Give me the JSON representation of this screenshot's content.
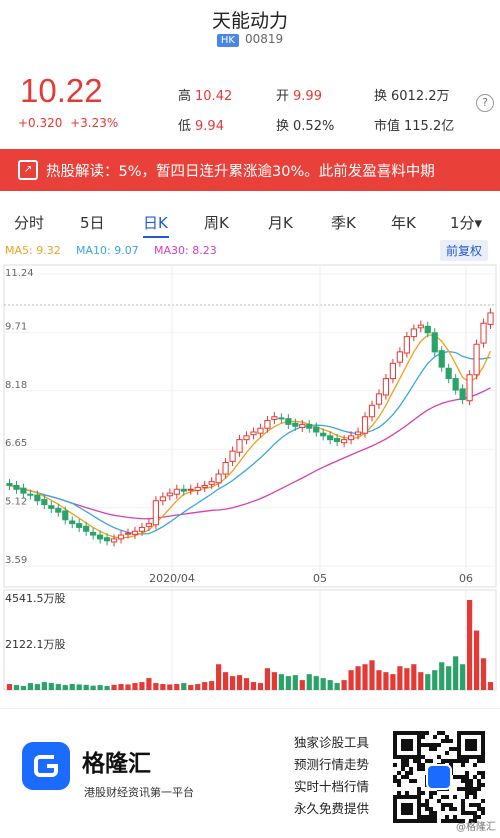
{
  "header": {
    "title": "天能动力",
    "market": "HK",
    "code": "00819"
  },
  "quote": {
    "price": "10.22",
    "change": "+0.320",
    "change_pct": "+3.23%",
    "stats": {
      "high_label": "高",
      "high": "10.42",
      "open_label": "开",
      "open": "9.99",
      "amount_label": "换",
      "amount": "6012.2万",
      "low_label": "低",
      "low": "9.94",
      "turnover_label": "换",
      "turnover": "0.52%",
      "mktcap_label": "市值",
      "mktcap": "115.2亿"
    },
    "help_icon": "?"
  },
  "banner": {
    "icon": "trend-icon",
    "text": "热股解读：5%，暂四日连升累涨逾30%。此前发盈喜料中期"
  },
  "tabs": [
    {
      "label": "分时"
    },
    {
      "label": "5日"
    },
    {
      "label": "日K",
      "active": true
    },
    {
      "label": "周K"
    },
    {
      "label": "月K"
    },
    {
      "label": "季K"
    },
    {
      "label": "年K"
    },
    {
      "label": "1分▾"
    }
  ],
  "ma": {
    "ma5": "MA5: 9.32",
    "ma10": "MA10: 9.07",
    "ma30": "MA30: 8.23",
    "colors": {
      "ma5": "#f0a020",
      "ma10": "#3aa6dd",
      "ma30": "#d640b0"
    },
    "adjust_button": "前复权"
  },
  "chart_data": {
    "type": "candlestick",
    "y_ticks": [
      "11.24",
      "9.71",
      "8.18",
      "6.65",
      "5.12",
      "3.59"
    ],
    "ylim": [
      3.59,
      11.24
    ],
    "x_ticks": [
      "2020/04",
      "05",
      "06"
    ],
    "volume_labels": [
      "4541.5万股",
      "2122.1万股"
    ],
    "volume_max": 4541.5,
    "close_series": [
      5.7,
      5.6,
      5.5,
      5.45,
      5.3,
      5.2,
      5.1,
      5.0,
      4.8,
      4.7,
      4.6,
      4.5,
      4.4,
      4.3,
      4.25,
      4.3,
      4.4,
      4.45,
      4.5,
      4.6,
      4.7,
      5.3,
      5.4,
      5.5,
      5.6,
      5.55,
      5.6,
      5.65,
      5.7,
      5.8,
      6.0,
      6.3,
      6.6,
      6.9,
      7.0,
      7.1,
      7.2,
      7.4,
      7.5,
      7.45,
      7.3,
      7.25,
      7.3,
      7.2,
      7.1,
      7.0,
      6.9,
      6.85,
      6.9,
      7.0,
      7.1,
      7.5,
      7.8,
      8.1,
      8.5,
      8.9,
      9.2,
      9.6,
      9.8,
      9.9,
      9.7,
      9.2,
      8.8,
      8.5,
      8.2,
      7.95,
      8.6,
      9.4,
      9.95,
      10.22
    ],
    "volumes": [
      300,
      250,
      200,
      350,
      300,
      400,
      350,
      300,
      250,
      300,
      280,
      260,
      220,
      250,
      200,
      260,
      300,
      280,
      350,
      400,
      600,
      350,
      300,
      280,
      300,
      350,
      250,
      300,
      400,
      450,
      1300,
      900,
      700,
      750,
      600,
      400,
      350,
      1100,
      900,
      800,
      700,
      750,
      500,
      800,
      700,
      600,
      500,
      350,
      500,
      1000,
      1200,
      1300,
      1500,
      1000,
      900,
      800,
      1200,
      1100,
      1300,
      900,
      800,
      1000,
      1400,
      1200,
      1700,
      1300,
      4541,
      3000,
      1600,
      400
    ]
  },
  "footer": {
    "brand": "格隆汇",
    "slogan": "港股财经资讯第一平台",
    "promo": [
      "独家诊股工具",
      "预测行情走势",
      "实时十档行情",
      "永久免费提供"
    ],
    "watermark": "@格隆汇"
  }
}
